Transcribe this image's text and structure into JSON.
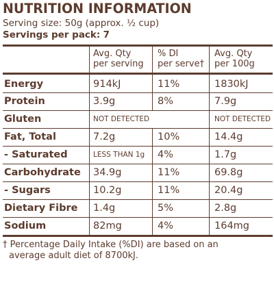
{
  "title": "NUTRITION INFORMATION",
  "serving_size_label": "Serving  size:",
  "serving_size_value": "50g (approx. ½ cup)",
  "servings_per_pack_label": "Servings per pack:",
  "servings_per_pack_value": "7",
  "headers": {
    "col1_line1": "Avg. Qty",
    "col1_line2": "per serving",
    "col2_line1": "% DI",
    "col2_line2": "per serve†",
    "col3_line1": "Avg. Qty",
    "col3_line2": "per 100g"
  },
  "rows": [
    {
      "name": "Energy",
      "per_serving": "914kJ",
      "di": "11%",
      "per_100g": "1830kJ"
    },
    {
      "name": "Protein",
      "per_serving": "3.9g",
      "di": "8%",
      "per_100g": "7.9g"
    },
    {
      "name": "Gluten",
      "per_serving": "NOT DETECTED",
      "di": "",
      "per_100g": "NOT DETECTED"
    },
    {
      "name": "Fat, Total",
      "per_serving": "7.2g",
      "di": "10%",
      "per_100g": "14.4g"
    },
    {
      "name": "-  Saturated",
      "per_serving": "LESS THAN 1g",
      "di": "4%",
      "per_100g": "1.7g"
    },
    {
      "name": "Carbohydrate",
      "per_serving": "34.9g",
      "di": "11%",
      "per_100g": "69.8g"
    },
    {
      "name": "-  Sugars",
      "per_serving": "10.2g",
      "di": "11%",
      "per_100g": "20.4g"
    },
    {
      "name": "Dietary Fibre",
      "per_serving": "1.4g",
      "di": "5%",
      "per_100g": "2.8g"
    },
    {
      "name": "Sodium",
      "per_serving": "82mg",
      "di": "4%",
      "per_100g": "164mg"
    }
  ],
  "footnote_line1": "† Percentage Daily Intake (%DI) are based on an",
  "footnote_line2": "average adult diet of 8700kJ.",
  "colors": {
    "text": "#5c3b2e",
    "background": "#ffffff"
  }
}
